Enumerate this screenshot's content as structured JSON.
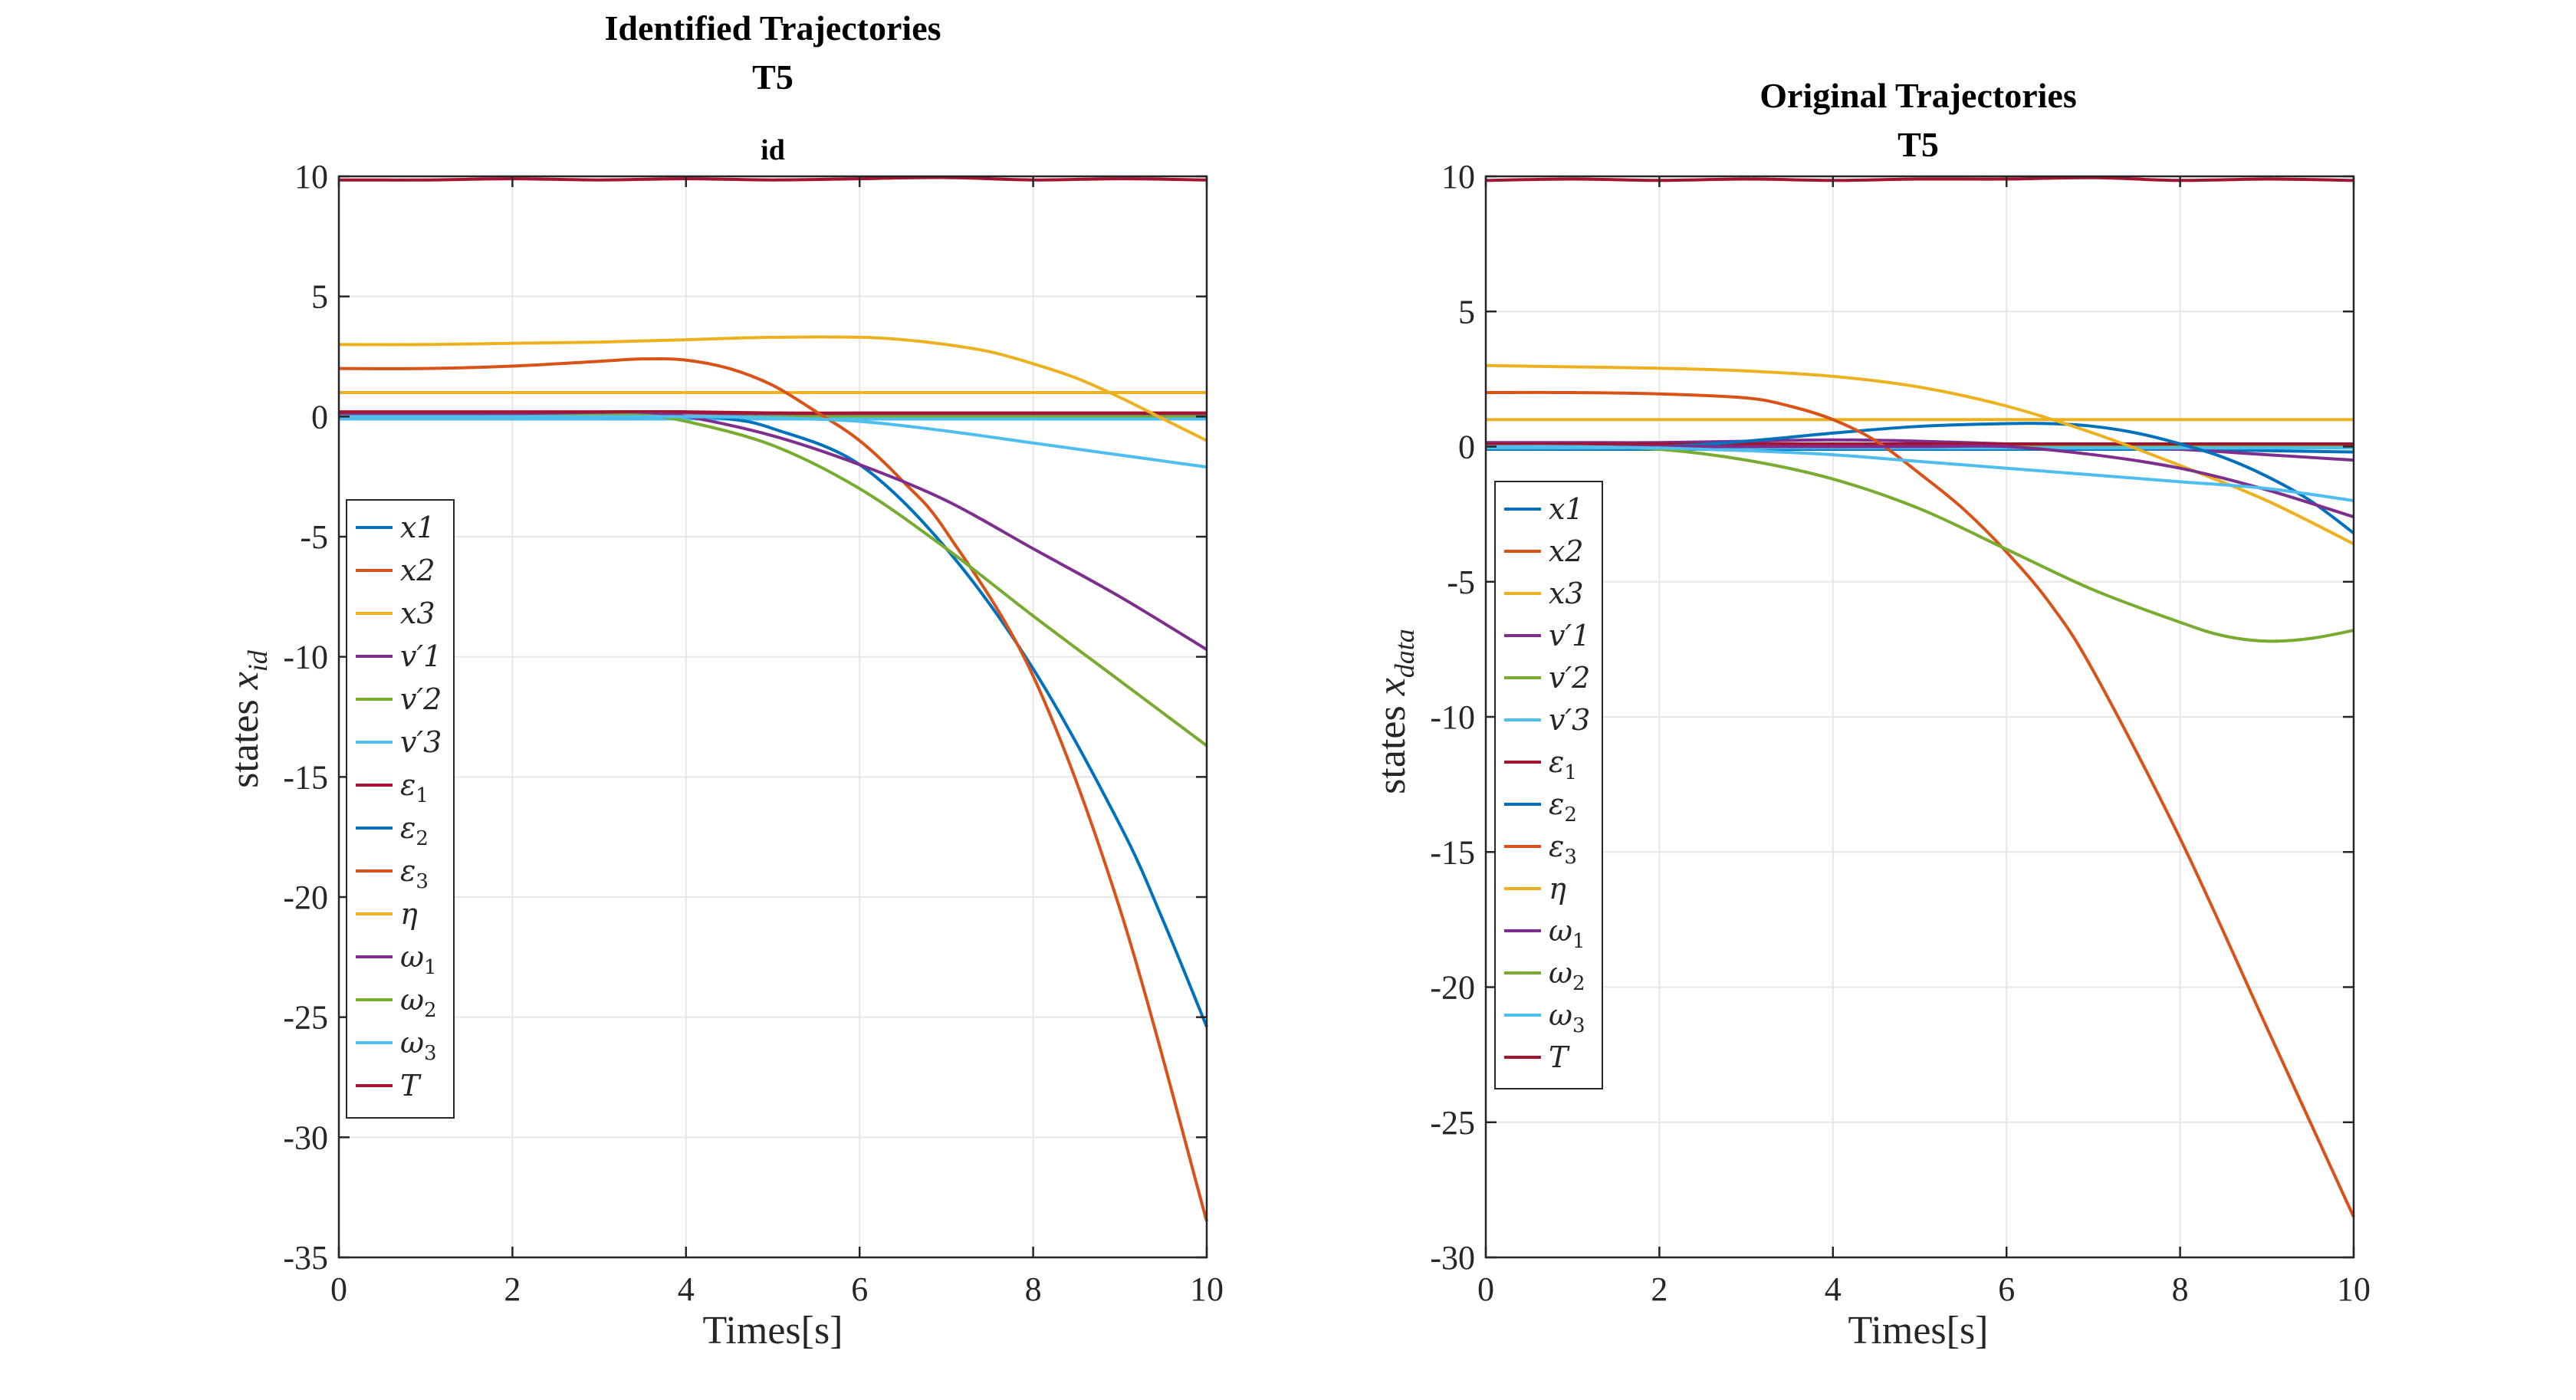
{
  "chart_data": [
    {
      "type": "line",
      "title": "Identified Trajectories",
      "subtitle": "T5",
      "subsubtitle": "id",
      "xlabel": "Times[s]",
      "ylabel": {
        "base": "states ",
        "var": "x",
        "sub": "id"
      },
      "xlim": [
        0,
        10
      ],
      "ylim": [
        -35,
        10
      ],
      "xticks": [
        0,
        2,
        4,
        6,
        8,
        10
      ],
      "yticks": [
        10,
        5,
        0,
        -5,
        -10,
        -15,
        -20,
        -25,
        -30,
        -35
      ],
      "grid": true,
      "legend_position": "middle-left",
      "series": [
        {
          "name": "x1",
          "legend_base": "x1",
          "legend_sub": "",
          "color": "#0072BD",
          "x": [
            0,
            1,
            2,
            3,
            4,
            5,
            6,
            7,
            8,
            9,
            10
          ],
          "y": [
            0,
            0,
            0,
            0,
            0,
            0,
            0,
            0,
            0,
            0,
            0
          ]
        },
        {
          "name": "x2",
          "legend_base": "x2",
          "legend_sub": "",
          "color": "#D95319",
          "x": [
            0,
            1,
            2,
            3,
            4,
            5,
            6,
            7,
            8,
            9,
            10
          ],
          "y": [
            0,
            0,
            0,
            0,
            0,
            0,
            0,
            0,
            0,
            0,
            0
          ]
        },
        {
          "name": "x3",
          "legend_base": "x3",
          "legend_sub": "",
          "color": "#EDB120",
          "x": [
            0,
            1,
            2,
            3,
            4,
            5,
            6,
            7,
            8,
            9,
            10
          ],
          "y": [
            1,
            1,
            1,
            1,
            1,
            1,
            1,
            1,
            1,
            1,
            1
          ]
        },
        {
          "name": "v'1",
          "legend_base": "v′1",
          "legend_sub": "",
          "color": "#7E2F8E",
          "x": [
            0,
            1,
            2,
            3,
            4,
            5,
            6,
            7,
            8,
            9,
            10
          ],
          "y": [
            0.1,
            0.1,
            0.1,
            0.15,
            0.15,
            0.1,
            0.1,
            0.1,
            0.1,
            0.1,
            0.1
          ]
        },
        {
          "name": "v'2",
          "legend_base": "v′2",
          "legend_sub": "",
          "color": "#77AC30",
          "x": [
            0,
            1,
            2,
            3,
            4,
            5,
            6,
            7,
            8,
            9,
            10
          ],
          "y": [
            0,
            0,
            0,
            0,
            0,
            0,
            0,
            0,
            0,
            0,
            0
          ]
        },
        {
          "name": "v'3",
          "legend_base": "v′3",
          "legend_sub": "",
          "color": "#4DBEEE",
          "x": [
            0,
            1,
            2,
            3,
            4,
            5,
            6,
            7,
            8,
            9,
            10
          ],
          "y": [
            -0.1,
            -0.1,
            -0.1,
            -0.1,
            -0.1,
            -0.1,
            -0.1,
            -0.1,
            -0.1,
            -0.1,
            -0.1
          ]
        },
        {
          "name": "ε1",
          "legend_base": "ε",
          "legend_sub": "1",
          "color": "#A2142F",
          "x": [
            0,
            1,
            2,
            3,
            4,
            5,
            6,
            7,
            8,
            9,
            10
          ],
          "y": [
            0.2,
            0.2,
            0.2,
            0.2,
            0.2,
            0.15,
            0.15,
            0.15,
            0.15,
            0.15,
            0.15
          ]
        },
        {
          "name": "ε2",
          "legend_base": "ε",
          "legend_sub": "2",
          "color": "#0072BD",
          "x": [
            0,
            1,
            2,
            3,
            4,
            4.5,
            5,
            6,
            7,
            8,
            9,
            9.5,
            10
          ],
          "y": [
            0,
            0,
            0,
            0,
            0,
            -0.1,
            -0.5,
            -2,
            -5.5,
            -10.5,
            -17,
            -21,
            -25.4
          ]
        },
        {
          "name": "ε3",
          "legend_base": "ε",
          "legend_sub": "3",
          "color": "#D95319",
          "x": [
            0,
            1,
            2,
            3,
            3.5,
            4,
            4.5,
            5,
            5.5,
            6,
            6.5,
            7,
            8,
            9,
            10
          ],
          "y": [
            2,
            2,
            2.1,
            2.3,
            2.4,
            2.35,
            2,
            1.3,
            0.2,
            -1,
            -2.7,
            -4.8,
            -10.8,
            -20.5,
            -33.5
          ]
        },
        {
          "name": "η",
          "legend_base": "η",
          "legend_sub": "",
          "color": "#EDB120",
          "x": [
            0,
            1,
            2,
            3,
            4,
            5,
            6,
            6.5,
            7,
            7.5,
            8,
            8.5,
            9,
            9.5,
            10
          ],
          "y": [
            3,
            3,
            3.05,
            3.1,
            3.2,
            3.3,
            3.3,
            3.2,
            3.0,
            2.7,
            2.2,
            1.6,
            0.8,
            -0.1,
            -1.0
          ]
        },
        {
          "name": "ω1",
          "legend_base": "ω",
          "legend_sub": "1",
          "color": "#7E2F8E",
          "x": [
            0,
            1,
            2,
            3,
            3.5,
            4,
            5,
            6,
            7,
            8,
            9,
            10
          ],
          "y": [
            0,
            0,
            0,
            0.05,
            0.1,
            0,
            -0.8,
            -2,
            -3.5,
            -5.5,
            -7.5,
            -9.7
          ]
        },
        {
          "name": "ω2",
          "legend_base": "ω",
          "legend_sub": "2",
          "color": "#77AC30",
          "x": [
            0,
            1,
            2,
            3,
            3.5,
            4,
            5,
            6,
            7,
            8,
            9,
            10
          ],
          "y": [
            0,
            0,
            0,
            0.05,
            0.05,
            -0.2,
            -1.2,
            -3,
            -5.5,
            -8.3,
            -11,
            -13.7
          ]
        },
        {
          "name": "ω3",
          "legend_base": "ω",
          "legend_sub": "3",
          "color": "#4DBEEE",
          "x": [
            0,
            1,
            2,
            3,
            4,
            5,
            6,
            7,
            8,
            9,
            10
          ],
          "y": [
            0,
            0,
            0,
            0,
            0,
            -0.05,
            -0.2,
            -0.6,
            -1.1,
            -1.6,
            -2.1
          ]
        },
        {
          "name": "T",
          "legend_base": "T",
          "legend_sub": "",
          "color": "#A2142F",
          "x": [
            0,
            1,
            2,
            3,
            4,
            5,
            6,
            7,
            8,
            9,
            10
          ],
          "y": [
            9.85,
            9.85,
            9.9,
            9.85,
            9.9,
            9.85,
            9.9,
            9.95,
            9.85,
            9.9,
            9.85
          ]
        }
      ]
    },
    {
      "type": "line",
      "title": "Original Trajectories",
      "subtitle": "T5",
      "xlabel": "Times[s]",
      "ylabel": {
        "base": "states ",
        "var": "x",
        "sub": "data"
      },
      "xlim": [
        0,
        10
      ],
      "ylim": [
        -30,
        10
      ],
      "xticks": [
        0,
        2,
        4,
        6,
        8,
        10
      ],
      "yticks": [
        10,
        5,
        0,
        -5,
        -10,
        -15,
        -20,
        -25,
        -30
      ],
      "grid": true,
      "legend_position": "middle-left",
      "series": [
        {
          "name": "x1",
          "legend_base": "x1",
          "legend_sub": "",
          "color": "#0072BD",
          "x": [
            0,
            1,
            2,
            3,
            4,
            5,
            6,
            7,
            8,
            9,
            10
          ],
          "y": [
            -0.1,
            -0.1,
            -0.1,
            -0.1,
            -0.1,
            -0.1,
            -0.1,
            -0.1,
            -0.1,
            -0.15,
            -0.2
          ]
        },
        {
          "name": "x2",
          "legend_base": "x2",
          "legend_sub": "",
          "color": "#D95319",
          "x": [
            0,
            1,
            2,
            3,
            4,
            5,
            6,
            7,
            8,
            9,
            10
          ],
          "y": [
            0.1,
            0.1,
            0.1,
            0.1,
            0.1,
            0.1,
            0.1,
            0.1,
            0.1,
            0.1,
            0.1
          ]
        },
        {
          "name": "x3",
          "legend_base": "x3",
          "legend_sub": "",
          "color": "#EDB120",
          "x": [
            0,
            1,
            2,
            3,
            4,
            5,
            6,
            7,
            8,
            9,
            10
          ],
          "y": [
            1,
            1,
            1,
            1,
            1,
            1,
            1,
            1,
            1,
            1,
            1
          ]
        },
        {
          "name": "v'1",
          "legend_base": "v′1",
          "legend_sub": "",
          "color": "#7E2F8E",
          "x": [
            0,
            1,
            2,
            3,
            4,
            5,
            6,
            7,
            8,
            9,
            10
          ],
          "y": [
            0.15,
            0.15,
            0.15,
            0.2,
            0.25,
            0.2,
            0.1,
            0,
            -0.1,
            -0.3,
            -0.5
          ]
        },
        {
          "name": "v'2",
          "legend_base": "v′2",
          "legend_sub": "",
          "color": "#77AC30",
          "x": [
            0,
            1,
            2,
            3,
            4,
            5,
            6,
            7,
            8,
            9,
            10
          ],
          "y": [
            0,
            0,
            0,
            0,
            0,
            0,
            0,
            0,
            0,
            0,
            0
          ]
        },
        {
          "name": "v'3",
          "legend_base": "v′3",
          "legend_sub": "",
          "color": "#4DBEEE",
          "x": [
            0,
            1,
            2,
            3,
            4,
            5,
            6,
            7,
            8,
            9,
            10
          ],
          "y": [
            -0.05,
            -0.05,
            -0.05,
            -0.05,
            -0.05,
            -0.05,
            -0.05,
            -0.05,
            -0.05,
            -0.05,
            -0.05
          ]
        },
        {
          "name": "ε1",
          "legend_base": "ε",
          "legend_sub": "1",
          "color": "#A2142F",
          "x": [
            0,
            1,
            2,
            3,
            4,
            5,
            6,
            7,
            8,
            9,
            10
          ],
          "y": [
            0.1,
            0.1,
            0.1,
            0.1,
            0.1,
            0.1,
            0.1,
            0.1,
            0.1,
            0.1,
            0.1
          ]
        },
        {
          "name": "ε2",
          "legend_base": "ε",
          "legend_sub": "2",
          "color": "#0072BD",
          "x": [
            0,
            1,
            2,
            3,
            4,
            5,
            6,
            6.5,
            7,
            7.5,
            8,
            8.5,
            9,
            9.5,
            10
          ],
          "y": [
            0,
            0,
            0,
            0.2,
            0.5,
            0.75,
            0.85,
            0.85,
            0.75,
            0.5,
            0.1,
            -0.4,
            -1.1,
            -2,
            -3.2
          ]
        },
        {
          "name": "ε3",
          "legend_base": "ε",
          "legend_sub": "3",
          "color": "#D95319",
          "x": [
            0,
            1,
            2,
            3,
            3.5,
            4,
            4.5,
            5,
            5.5,
            6,
            6.5,
            7,
            8,
            9,
            10
          ],
          "y": [
            2,
            2,
            1.95,
            1.8,
            1.5,
            1.0,
            0.2,
            -1,
            -2.3,
            -3.9,
            -5.8,
            -8.3,
            -14.5,
            -21.5,
            -28.5
          ]
        },
        {
          "name": "η",
          "legend_base": "η",
          "legend_sub": "",
          "color": "#EDB120",
          "x": [
            0,
            1,
            2,
            3,
            4,
            5,
            6,
            7,
            8,
            9,
            10
          ],
          "y": [
            3,
            2.95,
            2.9,
            2.8,
            2.6,
            2.2,
            1.5,
            0.5,
            -0.7,
            -2,
            -3.6
          ]
        },
        {
          "name": "ω1",
          "legend_base": "ω",
          "legend_sub": "1",
          "color": "#7E2F8E",
          "x": [
            0,
            1,
            2,
            3,
            4,
            5,
            6,
            7,
            8,
            9,
            10
          ],
          "y": [
            0,
            0,
            0,
            0,
            0,
            0,
            0,
            -0.3,
            -0.8,
            -1.6,
            -2.6
          ]
        },
        {
          "name": "ω2",
          "legend_base": "ω",
          "legend_sub": "2",
          "color": "#77AC30",
          "x": [
            0,
            1,
            2,
            3,
            4,
            5,
            6,
            7,
            8,
            8.5,
            9,
            9.5,
            10
          ],
          "y": [
            0,
            0,
            -0.1,
            -0.5,
            -1.2,
            -2.3,
            -3.8,
            -5.3,
            -6.5,
            -7,
            -7.2,
            -7.1,
            -6.8
          ]
        },
        {
          "name": "ω3",
          "legend_base": "ω",
          "legend_sub": "3",
          "color": "#4DBEEE",
          "x": [
            0,
            1,
            2,
            3,
            4,
            5,
            6,
            7,
            8,
            9,
            10
          ],
          "y": [
            0,
            0,
            -0.05,
            -0.15,
            -0.3,
            -0.55,
            -0.8,
            -1.05,
            -1.3,
            -1.55,
            -2.0
          ]
        },
        {
          "name": "T",
          "legend_base": "T",
          "legend_sub": "",
          "color": "#A2142F",
          "x": [
            0,
            1,
            2,
            3,
            4,
            5,
            6,
            7,
            8,
            9,
            10
          ],
          "y": [
            9.85,
            9.9,
            9.85,
            9.9,
            9.85,
            9.9,
            9.9,
            9.95,
            9.85,
            9.9,
            9.85
          ]
        }
      ]
    }
  ]
}
